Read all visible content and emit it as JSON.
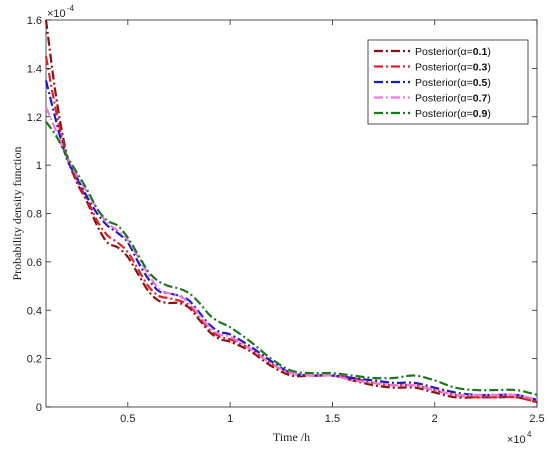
{
  "chart_data": {
    "type": "line",
    "title": "",
    "xlabel": "Time /h",
    "ylabel": "Probability density function",
    "x_multiplier": "×10",
    "x_multiplier_exp": "4",
    "y_multiplier": "×10",
    "y_multiplier_exp": "-4",
    "xlim": [
      0.1,
      2.5
    ],
    "ylim": [
      0,
      1.6
    ],
    "x_ticks": [
      0.5,
      1,
      1.5,
      2,
      2.5
    ],
    "x_tick_labels": [
      "0.5",
      "1",
      "1.5",
      "2",
      "2.5"
    ],
    "y_ticks": [
      0,
      0.2,
      0.4,
      0.6,
      0.8,
      1,
      1.2,
      1.4,
      1.6
    ],
    "y_tick_labels": [
      "0",
      "0.2",
      "0.4",
      "0.6",
      "0.8",
      "1",
      "1.2",
      "1.4",
      "1.6"
    ],
    "legend_position": "top-right",
    "series": [
      {
        "name": "Posterior(α=0.1)",
        "legend_prefix": "Posterior(α=",
        "legend_value": "0.1",
        "legend_suffix": ")",
        "color": "#8b1010",
        "x": [
          0.1,
          0.15,
          0.2,
          0.25,
          0.3,
          0.35,
          0.4,
          0.45,
          0.5,
          0.55,
          0.6,
          0.65,
          0.7,
          0.75,
          0.8,
          0.85,
          0.9,
          0.95,
          1.0,
          1.1,
          1.2,
          1.3,
          1.4,
          1.5,
          1.6,
          1.7,
          1.8,
          1.9,
          2.0,
          2.1,
          2.2,
          2.3,
          2.4,
          2.5
        ],
        "y": [
          1.6,
          1.28,
          1.05,
          0.93,
          0.85,
          0.75,
          0.68,
          0.66,
          0.62,
          0.55,
          0.48,
          0.44,
          0.43,
          0.43,
          0.41,
          0.36,
          0.31,
          0.28,
          0.27,
          0.23,
          0.17,
          0.13,
          0.13,
          0.13,
          0.11,
          0.09,
          0.08,
          0.08,
          0.06,
          0.04,
          0.04,
          0.04,
          0.04,
          0.02
        ]
      },
      {
        "name": "Posterior(α=0.3)",
        "legend_prefix": "Posterior(α=",
        "legend_value": "0.3",
        "legend_suffix": ")",
        "color": "#e0202a",
        "x": [
          0.1,
          0.15,
          0.2,
          0.25,
          0.3,
          0.35,
          0.4,
          0.45,
          0.5,
          0.55,
          0.6,
          0.65,
          0.7,
          0.75,
          0.8,
          0.85,
          0.9,
          0.95,
          1.0,
          1.1,
          1.2,
          1.3,
          1.4,
          1.5,
          1.6,
          1.7,
          1.8,
          1.9,
          2.0,
          2.1,
          2.2,
          2.3,
          2.4,
          2.5
        ],
        "y": [
          1.45,
          1.22,
          1.04,
          0.94,
          0.86,
          0.77,
          0.71,
          0.68,
          0.64,
          0.57,
          0.5,
          0.46,
          0.45,
          0.44,
          0.42,
          0.37,
          0.32,
          0.29,
          0.28,
          0.24,
          0.18,
          0.14,
          0.13,
          0.13,
          0.12,
          0.1,
          0.09,
          0.09,
          0.07,
          0.05,
          0.04,
          0.04,
          0.04,
          0.02
        ]
      },
      {
        "name": "Posterior(α=0.5)",
        "legend_prefix": "Posterior(α=",
        "legend_value": "0.5",
        "legend_suffix": ")",
        "color": "#1a1ad0",
        "x": [
          0.1,
          0.15,
          0.2,
          0.25,
          0.3,
          0.35,
          0.4,
          0.45,
          0.5,
          0.55,
          0.6,
          0.65,
          0.7,
          0.75,
          0.8,
          0.85,
          0.9,
          0.95,
          1.0,
          1.1,
          1.2,
          1.3,
          1.4,
          1.5,
          1.6,
          1.7,
          1.8,
          1.9,
          2.0,
          2.1,
          2.2,
          2.3,
          2.4,
          2.5
        ],
        "y": [
          1.35,
          1.18,
          1.03,
          0.95,
          0.87,
          0.8,
          0.75,
          0.72,
          0.68,
          0.6,
          0.53,
          0.48,
          0.47,
          0.46,
          0.44,
          0.39,
          0.34,
          0.31,
          0.3,
          0.25,
          0.19,
          0.14,
          0.13,
          0.13,
          0.12,
          0.11,
          0.1,
          0.1,
          0.08,
          0.06,
          0.05,
          0.05,
          0.05,
          0.03
        ]
      },
      {
        "name": "Posterior(α=0.7)",
        "legend_prefix": "Posterior(α=",
        "legend_value": "0.7",
        "legend_suffix": ")",
        "color": "#f07ad6",
        "x": [
          0.1,
          0.15,
          0.2,
          0.25,
          0.3,
          0.35,
          0.4,
          0.45,
          0.5,
          0.55,
          0.6,
          0.65,
          0.7,
          0.75,
          0.8,
          0.85,
          0.9,
          0.95,
          1.0,
          1.1,
          1.2,
          1.3,
          1.4,
          1.5,
          1.6,
          1.7,
          1.8,
          1.9,
          2.0,
          2.1,
          2.2,
          2.3,
          2.4,
          2.5
        ],
        "y": [
          1.24,
          1.14,
          1.04,
          0.96,
          0.89,
          0.82,
          0.76,
          0.73,
          0.69,
          0.62,
          0.55,
          0.49,
          0.47,
          0.46,
          0.43,
          0.38,
          0.33,
          0.3,
          0.29,
          0.24,
          0.18,
          0.14,
          0.13,
          0.13,
          0.11,
          0.1,
          0.09,
          0.09,
          0.07,
          0.05,
          0.05,
          0.05,
          0.05,
          0.03
        ]
      },
      {
        "name": "Posterior(α=0.9)",
        "legend_prefix": "Posterior(α=",
        "legend_value": "0.9",
        "legend_suffix": ")",
        "color": "#1a7a1a",
        "x": [
          0.1,
          0.15,
          0.2,
          0.25,
          0.3,
          0.35,
          0.4,
          0.45,
          0.5,
          0.55,
          0.6,
          0.65,
          0.7,
          0.75,
          0.8,
          0.85,
          0.9,
          0.95,
          1.0,
          1.1,
          1.2,
          1.3,
          1.4,
          1.5,
          1.6,
          1.7,
          1.8,
          1.9,
          2.0,
          2.1,
          2.2,
          2.3,
          2.4,
          2.5
        ],
        "y": [
          1.18,
          1.12,
          1.04,
          0.97,
          0.9,
          0.82,
          0.77,
          0.75,
          0.7,
          0.63,
          0.56,
          0.52,
          0.5,
          0.49,
          0.47,
          0.43,
          0.38,
          0.35,
          0.33,
          0.27,
          0.2,
          0.15,
          0.14,
          0.14,
          0.13,
          0.12,
          0.12,
          0.13,
          0.11,
          0.08,
          0.07,
          0.07,
          0.07,
          0.05
        ]
      }
    ]
  }
}
